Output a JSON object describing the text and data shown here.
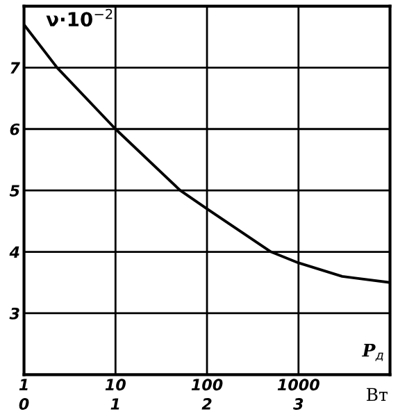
{
  "chart_data": {
    "type": "line",
    "ylabel": "ν·10$^{−2}$",
    "xlabel": "Вт",
    "annotations": [
      "P$_{д}$"
    ],
    "x": [
      1,
      2.3,
      10,
      51,
      100,
      500,
      1000,
      3000,
      10000
    ],
    "series": [
      {
        "color": "#000000",
        "values": [
          7.7,
          7.0,
          6.0,
          5.0,
          4.7,
          4.0,
          3.82,
          3.6,
          3.5
        ]
      }
    ],
    "log": "x",
    "xlim": [
      1,
      10000
    ],
    "xticks": [
      1,
      10,
      100,
      1000
    ],
    "x2lim": [
      0,
      4
    ],
    "x2ticks": [
      0,
      1,
      2,
      3
    ],
    "ylim": [
      2,
      8
    ],
    "yticks": [
      {
        "value": 2,
        "label": null
      },
      3,
      4,
      5,
      6,
      7,
      {
        "value": 8,
        "label": null
      }
    ],
    "grid": true,
    "marker": "none",
    "line_style": "solid"
  }
}
